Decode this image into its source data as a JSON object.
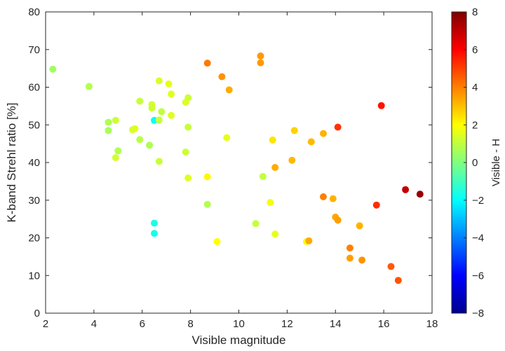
{
  "chart_data": {
    "type": "scatter",
    "xlabel": "Visible magnitude",
    "ylabel": "K-band Strehl ratio [%]",
    "colorbar_label": "Visible - H",
    "xlim": [
      2,
      18
    ],
    "ylim": [
      0,
      80
    ],
    "clim": [
      -8,
      8
    ],
    "x_ticks": [
      "2",
      "4",
      "6",
      "8",
      "10",
      "12",
      "14",
      "16",
      "18"
    ],
    "y_ticks": [
      "0",
      "10",
      "20",
      "30",
      "40",
      "50",
      "60",
      "70",
      "80"
    ],
    "c_ticks": [
      "8",
      "6",
      "4",
      "2",
      "0",
      "−2",
      "−4",
      "−6",
      "−8"
    ],
    "colormap": "jet",
    "grid": false,
    "colorbar_position": "right",
    "points": [
      {
        "x": 2.3,
        "y": 64.8,
        "c": 0.5
      },
      {
        "x": 3.8,
        "y": 60.2,
        "c": 0.8
      },
      {
        "x": 4.6,
        "y": 50.7,
        "c": 0.7
      },
      {
        "x": 4.6,
        "y": 48.5,
        "c": 0.6
      },
      {
        "x": 4.9,
        "y": 51.2,
        "c": 1.2
      },
      {
        "x": 5.0,
        "y": 43.1,
        "c": 0.8
      },
      {
        "x": 4.9,
        "y": 41.3,
        "c": 1.3
      },
      {
        "x": 5.7,
        "y": 49.0,
        "c": 1.5
      },
      {
        "x": 5.6,
        "y": 48.7,
        "c": 1.4
      },
      {
        "x": 5.9,
        "y": 56.3,
        "c": 1.1
      },
      {
        "x": 5.9,
        "y": 46.1,
        "c": 0.9
      },
      {
        "x": 6.3,
        "y": 44.6,
        "c": 0.7
      },
      {
        "x": 6.4,
        "y": 55.4,
        "c": 1.3
      },
      {
        "x": 6.4,
        "y": 54.5,
        "c": 1.2
      },
      {
        "x": 6.5,
        "y": 51.2,
        "c": -1.8
      },
      {
        "x": 6.7,
        "y": 61.7,
        "c": 1.4
      },
      {
        "x": 6.7,
        "y": 51.3,
        "c": 1.1
      },
      {
        "x": 6.8,
        "y": 53.5,
        "c": 1.0
      },
      {
        "x": 6.7,
        "y": 40.3,
        "c": 1.1
      },
      {
        "x": 7.1,
        "y": 60.9,
        "c": 1.6
      },
      {
        "x": 7.2,
        "y": 58.2,
        "c": 1.5
      },
      {
        "x": 7.2,
        "y": 52.5,
        "c": 1.5
      },
      {
        "x": 7.8,
        "y": 56.0,
        "c": 1.5
      },
      {
        "x": 7.9,
        "y": 57.2,
        "c": 1.2
      },
      {
        "x": 7.9,
        "y": 49.4,
        "c": 1.1
      },
      {
        "x": 7.8,
        "y": 42.8,
        "c": 1.2
      },
      {
        "x": 7.9,
        "y": 35.9,
        "c": 1.5
      },
      {
        "x": 6.5,
        "y": 23.9,
        "c": -1.6
      },
      {
        "x": 6.5,
        "y": 21.2,
        "c": -1.7
      },
      {
        "x": 8.7,
        "y": 66.4,
        "c": 4.1
      },
      {
        "x": 8.7,
        "y": 36.2,
        "c": 2.1
      },
      {
        "x": 8.7,
        "y": 28.9,
        "c": 0.8
      },
      {
        "x": 9.1,
        "y": 19.0,
        "c": 2.0
      },
      {
        "x": 9.3,
        "y": 62.8,
        "c": 3.7
      },
      {
        "x": 9.5,
        "y": 46.6,
        "c": 1.6
      },
      {
        "x": 9.6,
        "y": 59.3,
        "c": 3.3
      },
      {
        "x": 10.7,
        "y": 23.8,
        "c": 1.1
      },
      {
        "x": 10.9,
        "y": 68.3,
        "c": 3.6
      },
      {
        "x": 10.9,
        "y": 66.5,
        "c": 3.6
      },
      {
        "x": 11.0,
        "y": 36.3,
        "c": 1.0
      },
      {
        "x": 11.3,
        "y": 29.4,
        "c": 1.8
      },
      {
        "x": 11.4,
        "y": 46.0,
        "c": 2.4
      },
      {
        "x": 11.5,
        "y": 21.0,
        "c": 1.6
      },
      {
        "x": 11.5,
        "y": 38.7,
        "c": 3.3
      },
      {
        "x": 12.2,
        "y": 40.6,
        "c": 3.1
      },
      {
        "x": 12.3,
        "y": 48.5,
        "c": 2.7
      },
      {
        "x": 12.8,
        "y": 19.0,
        "c": 1.9
      },
      {
        "x": 12.9,
        "y": 19.2,
        "c": 3.3
      },
      {
        "x": 13.0,
        "y": 45.5,
        "c": 3.1
      },
      {
        "x": 13.5,
        "y": 47.7,
        "c": 3.2
      },
      {
        "x": 13.5,
        "y": 30.9,
        "c": 4.0
      },
      {
        "x": 13.9,
        "y": 30.4,
        "c": 3.2
      },
      {
        "x": 14.0,
        "y": 25.5,
        "c": 3.4
      },
      {
        "x": 14.1,
        "y": 24.7,
        "c": 3.5
      },
      {
        "x": 14.1,
        "y": 49.4,
        "c": 5.2
      },
      {
        "x": 14.6,
        "y": 17.3,
        "c": 4.0
      },
      {
        "x": 14.6,
        "y": 14.6,
        "c": 3.5
      },
      {
        "x": 15.0,
        "y": 23.2,
        "c": 3.2
      },
      {
        "x": 15.1,
        "y": 14.1,
        "c": 3.7
      },
      {
        "x": 15.7,
        "y": 28.7,
        "c": 5.3
      },
      {
        "x": 15.9,
        "y": 55.1,
        "c": 5.7
      },
      {
        "x": 16.3,
        "y": 12.4,
        "c": 4.6
      },
      {
        "x": 16.6,
        "y": 8.7,
        "c": 4.7
      },
      {
        "x": 16.9,
        "y": 32.8,
        "c": 7.0
      },
      {
        "x": 17.5,
        "y": 31.6,
        "c": 7.6
      }
    ]
  }
}
